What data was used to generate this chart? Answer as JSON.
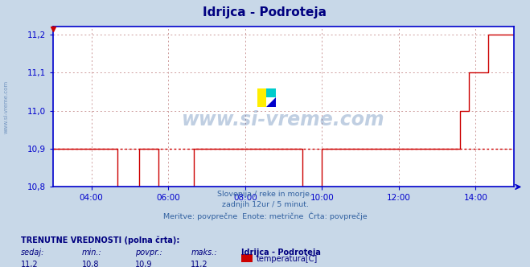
{
  "title": "Idrijca - Podroteja",
  "title_color": "#000080",
  "bg_color": "#c8d8e8",
  "plot_bg_color": "#ffffff",
  "line_color": "#cc0000",
  "avg_line_color": "#cc0000",
  "avg_value": 10.9,
  "xmin": 0,
  "xmax": 144,
  "ymin": 10.8,
  "ymax": 11.22,
  "yticks": [
    10.8,
    10.9,
    11.0,
    11.1,
    11.2
  ],
  "xtick_positions": [
    12,
    36,
    60,
    84,
    108,
    132
  ],
  "xtick_labels": [
    "04:00",
    "06:00",
    "08:00",
    "10:00",
    "12:00",
    "14:00"
  ],
  "xlabel_text": "Slovenija / reke in morje.\nzadnjih 12ur / 5 minut.\nMeritve: povprečne  Enote: metrične  Črta: povprečje",
  "watermark": "www.si-vreme.com",
  "grid_color": "#cc9999",
  "axis_color": "#0000cc",
  "footer_title": "TRENUTNE VREDNOSTI (polna črta):",
  "footer_labels": [
    "sedaj:",
    "min.:",
    "povpr.:",
    "maks.:"
  ],
  "footer_values": [
    "11,2",
    "10,8",
    "10,9",
    "11,2"
  ],
  "footer_station": "Idrijca - Podroteja",
  "footer_legend_label": "temperatura[C]",
  "footer_legend_color": "#cc0000",
  "side_label": "www.si-vreme.com",
  "data_points": [
    [
      0,
      10.9
    ],
    [
      5,
      10.9
    ],
    [
      10,
      10.9
    ],
    [
      15,
      10.9
    ],
    [
      19,
      10.9
    ],
    [
      20,
      10.8
    ],
    [
      21,
      10.8
    ],
    [
      22,
      10.8
    ],
    [
      26,
      10.8
    ],
    [
      27,
      10.9
    ],
    [
      28,
      10.9
    ],
    [
      29,
      10.9
    ],
    [
      30,
      10.9
    ],
    [
      32,
      10.9
    ],
    [
      33,
      10.8
    ],
    [
      34,
      10.8
    ],
    [
      35,
      10.8
    ],
    [
      36,
      10.8
    ],
    [
      37,
      10.8
    ],
    [
      38,
      10.8
    ],
    [
      40,
      10.8
    ],
    [
      41,
      10.8
    ],
    [
      43,
      10.8
    ],
    [
      44,
      10.9
    ],
    [
      46,
      10.9
    ],
    [
      48,
      10.9
    ],
    [
      50,
      10.9
    ],
    [
      52,
      10.9
    ],
    [
      54,
      10.9
    ],
    [
      56,
      10.9
    ],
    [
      58,
      10.9
    ],
    [
      60,
      10.9
    ],
    [
      62,
      10.9
    ],
    [
      64,
      10.9
    ],
    [
      66,
      10.9
    ],
    [
      68,
      10.9
    ],
    [
      70,
      10.9
    ],
    [
      72,
      10.9
    ],
    [
      74,
      10.9
    ],
    [
      76,
      10.9
    ],
    [
      77,
      10.9
    ],
    [
      78,
      10.8
    ],
    [
      79,
      10.8
    ],
    [
      80,
      10.8
    ],
    [
      81,
      10.8
    ],
    [
      82,
      10.8
    ],
    [
      83,
      10.8
    ],
    [
      84,
      10.9
    ],
    [
      85,
      10.9
    ],
    [
      86,
      10.9
    ],
    [
      88,
      10.9
    ],
    [
      90,
      10.9
    ],
    [
      92,
      10.9
    ],
    [
      94,
      10.9
    ],
    [
      96,
      10.9
    ],
    [
      98,
      10.9
    ],
    [
      100,
      10.9
    ],
    [
      102,
      10.9
    ],
    [
      104,
      10.9
    ],
    [
      106,
      10.9
    ],
    [
      108,
      10.9
    ],
    [
      110,
      10.9
    ],
    [
      112,
      10.9
    ],
    [
      114,
      10.9
    ],
    [
      116,
      10.9
    ],
    [
      118,
      10.9
    ],
    [
      120,
      10.9
    ],
    [
      121,
      10.9
    ],
    [
      122,
      10.9
    ],
    [
      123,
      10.9
    ],
    [
      124,
      10.9
    ],
    [
      125,
      10.9
    ],
    [
      126,
      10.9
    ],
    [
      127,
      11.0
    ],
    [
      128,
      11.0
    ],
    [
      129,
      11.0
    ],
    [
      130,
      11.1
    ],
    [
      131,
      11.1
    ],
    [
      132,
      11.1
    ],
    [
      133,
      11.1
    ],
    [
      134,
      11.1
    ],
    [
      135,
      11.1
    ],
    [
      136,
      11.2
    ],
    [
      137,
      11.2
    ],
    [
      138,
      11.2
    ],
    [
      139,
      11.2
    ],
    [
      140,
      11.2
    ],
    [
      141,
      11.2
    ],
    [
      142,
      11.2
    ],
    [
      143,
      11.2
    ],
    [
      144,
      11.2
    ]
  ]
}
